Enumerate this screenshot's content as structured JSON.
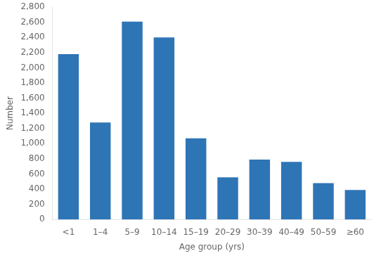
{
  "chart_data": {
    "type": "bar",
    "categories": [
      "<1",
      "1–4",
      "5–9",
      "10–14",
      "15–19",
      "20–29",
      "30–39",
      "40–49",
      "50–59",
      "≥60"
    ],
    "values": [
      2180,
      1280,
      2610,
      2400,
      1070,
      555,
      790,
      760,
      480,
      390
    ],
    "color": "#2e75b6",
    "xlabel": "Age group (yrs)",
    "ylabel": "Number",
    "ylim": [
      0,
      2800
    ],
    "yticks": [
      0,
      200,
      400,
      600,
      800,
      {
        "value": 1000,
        "label": "1,000"
      },
      {
        "value": 1200,
        "label": "1,200"
      },
      {
        "value": 1400,
        "label": "1,400"
      },
      {
        "value": 1600,
        "label": "1,600"
      },
      {
        "value": 1800,
        "label": "1,800"
      },
      {
        "value": 2000,
        "label": "2,000"
      },
      {
        "value": 2200,
        "label": "2,200"
      },
      {
        "value": 2400,
        "label": "2,400"
      },
      {
        "value": 2600,
        "label": "2,600"
      },
      {
        "value": 2800,
        "label": "2,800"
      }
    ],
    "grid": false
  }
}
